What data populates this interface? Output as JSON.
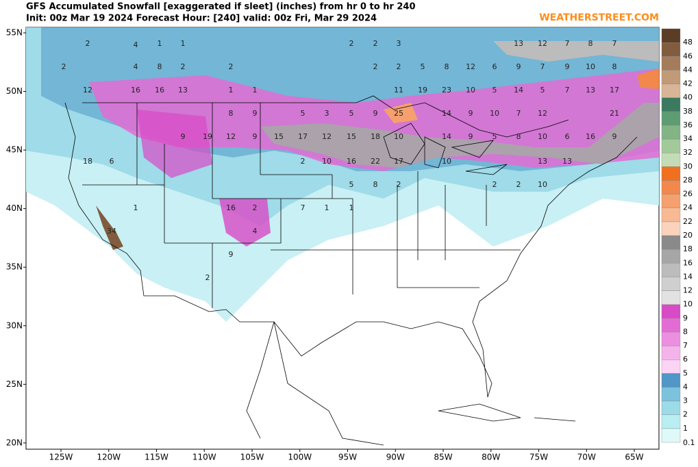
{
  "header": {
    "title": "GFS Accumulated Snowfall [exaggerated if sleet]  (inches) from hr 0 to hr 240",
    "subtitle": "Init: 00z Mar 19 2024  Forecast Hour: [240]  valid: 00z Fri, Mar 29 2024",
    "brand": "WEATHERSTREET.COM"
  },
  "map": {
    "lat_ticks": [
      {
        "value": 55,
        "label": "55N"
      },
      {
        "value": 50,
        "label": "50N"
      },
      {
        "value": 45,
        "label": "45N"
      },
      {
        "value": 40,
        "label": "40N"
      },
      {
        "value": 35,
        "label": "35N"
      },
      {
        "value": 30,
        "label": "30N"
      },
      {
        "value": 25,
        "label": "25N"
      },
      {
        "value": 20,
        "label": "20N"
      }
    ],
    "lon_ticks": [
      {
        "value": -125,
        "label": "125W"
      },
      {
        "value": -120,
        "label": "120W"
      },
      {
        "value": -115,
        "label": "115W"
      },
      {
        "value": -110,
        "label": "110W"
      },
      {
        "value": -105,
        "label": "105W"
      },
      {
        "value": -100,
        "label": "100W"
      },
      {
        "value": -95,
        "label": "95W"
      },
      {
        "value": -90,
        "label": "90W"
      },
      {
        "value": -85,
        "label": "85W"
      },
      {
        "value": -80,
        "label": "80W"
      },
      {
        "value": -75,
        "label": "75W"
      },
      {
        "value": -70,
        "label": "70W"
      },
      {
        "value": -65,
        "label": "65W"
      }
    ],
    "spot_values": [
      2,
      4,
      1,
      1,
      2,
      2,
      3,
      13,
      12,
      7,
      8,
      7,
      2,
      4,
      8,
      2,
      2,
      2,
      2,
      5,
      8,
      12,
      6,
      9,
      7,
      9,
      10,
      8,
      12,
      16,
      16,
      13,
      1,
      1,
      11,
      19,
      23,
      10,
      5,
      14,
      5,
      7,
      13,
      17,
      8,
      9,
      5,
      3,
      5,
      9,
      25,
      14,
      9,
      10,
      7,
      12,
      21,
      9,
      19,
      12,
      9,
      15,
      17,
      12,
      15,
      18,
      10,
      14,
      9,
      5,
      8,
      10,
      6,
      16,
      9,
      18,
      6,
      2,
      10,
      16,
      22,
      17,
      10,
      13,
      13,
      5,
      8,
      2,
      2,
      2,
      10,
      1,
      16,
      2,
      7,
      1,
      1,
      34,
      4,
      9,
      2
    ]
  },
  "colorbar": {
    "levels": [
      {
        "value": 0.1,
        "color": "#dff9f9"
      },
      {
        "value": 1,
        "color": "#b9eef2"
      },
      {
        "value": 2,
        "color": "#9cdbe8"
      },
      {
        "value": 3,
        "color": "#7cc2dc"
      },
      {
        "value": 4,
        "color": "#4f97c6"
      },
      {
        "value": 5,
        "color": "#fbd3f5"
      },
      {
        "value": 6,
        "color": "#f5b3ec"
      },
      {
        "value": 7,
        "color": "#ec8fe0"
      },
      {
        "value": 8,
        "color": "#e36cd4"
      },
      {
        "value": 9,
        "color": "#d84ac6"
      },
      {
        "value": 10,
        "color": "#e2e2e2"
      },
      {
        "value": 12,
        "color": "#cfcfcf"
      },
      {
        "value": 14,
        "color": "#bcbcbc"
      },
      {
        "value": 16,
        "color": "#a6a6a6"
      },
      {
        "value": 18,
        "color": "#8a8a8a"
      },
      {
        "value": 20,
        "color": "#fbd2bb"
      },
      {
        "value": 22,
        "color": "#f8b993"
      },
      {
        "value": 24,
        "color": "#f5a06e"
      },
      {
        "value": 26,
        "color": "#f2884c"
      },
      {
        "value": 28,
        "color": "#f07020"
      },
      {
        "value": 30,
        "color": "#c3dcb5"
      },
      {
        "value": 32,
        "color": "#a2c99a"
      },
      {
        "value": 34,
        "color": "#82b485"
      },
      {
        "value": 36,
        "color": "#5e9c73"
      },
      {
        "value": 38,
        "color": "#3b7a5f"
      },
      {
        "value": 40,
        "color": "#d8b596"
      },
      {
        "value": 42,
        "color": "#c19a78"
      },
      {
        "value": 44,
        "color": "#a47b5b"
      },
      {
        "value": 46,
        "color": "#825c3f"
      },
      {
        "value": 48,
        "color": "#5b3c25"
      }
    ]
  }
}
